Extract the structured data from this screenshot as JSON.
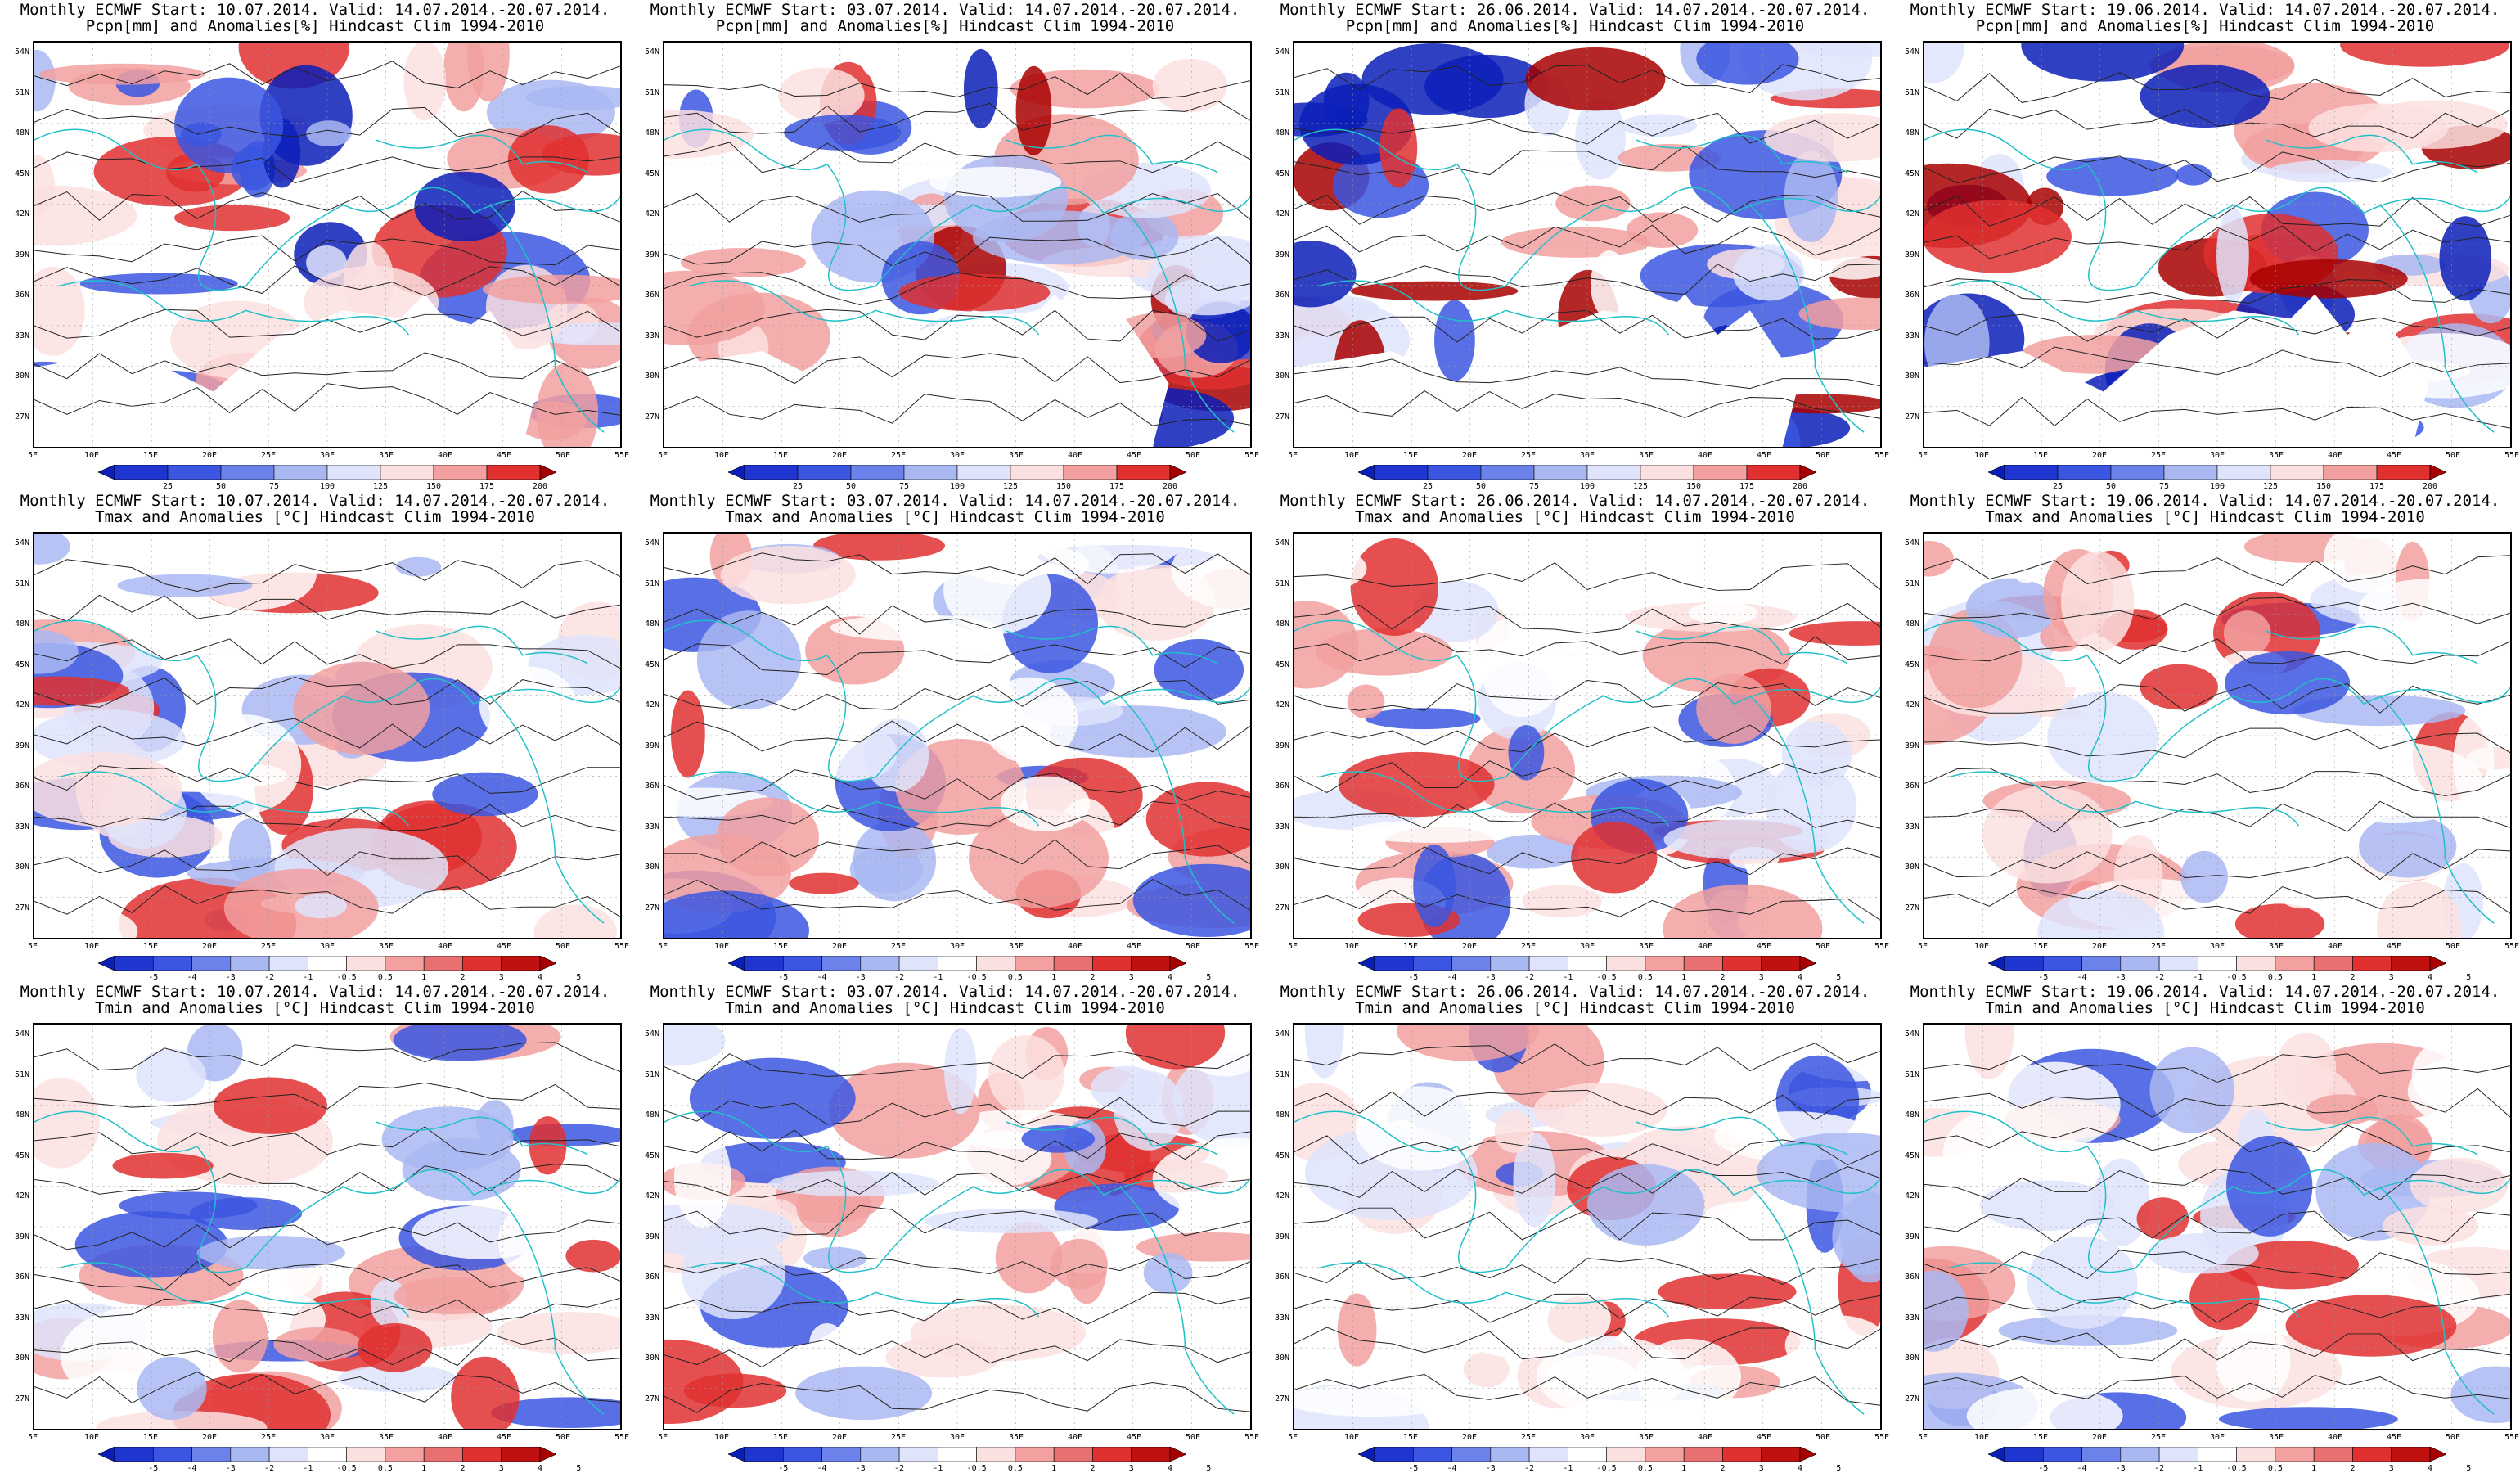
{
  "columns": [
    {
      "start": "10.07.2014"
    },
    {
      "start": "03.07.2014"
    },
    {
      "start": "26.06.2014"
    },
    {
      "start": "19.06.2014"
    }
  ],
  "title_prefix": "Monthly ECMWF Start: ",
  "title_valid": ". Valid: 14.07.2014.-20.07.2014.",
  "rows": [
    {
      "variable": "Pcpn[mm] and Anomalies[%] Hindcast Clim 1994-2010",
      "scale_labels": [
        "25",
        "50",
        "75",
        "100",
        "125",
        "150",
        "175",
        "200"
      ]
    },
    {
      "variable": "Tmax and Anomalies [°C] Hindcast Clim 1994-2010",
      "scale_labels": [
        "-5",
        "-4",
        "-3",
        "-2",
        "-1",
        "-0.5",
        "0.5",
        "1",
        "2",
        "3",
        "4",
        "5"
      ]
    },
    {
      "variable": "Tmin and Anomalies [°C] Hindcast Clim 1994-2010",
      "scale_labels": [
        "-5",
        "-4",
        "-3",
        "-2",
        "-1",
        "-0.5",
        "0.5",
        "1",
        "2",
        "3",
        "4",
        "5"
      ]
    }
  ],
  "lat_labels": [
    "54N",
    "51N",
    "48N",
    "45N",
    "42N",
    "39N",
    "36N",
    "33N",
    "30N",
    "27N"
  ],
  "lon_labels": [
    "5E",
    "10E",
    "15E",
    "20E",
    "25E",
    "30E",
    "35E",
    "40E",
    "45E",
    "50E",
    "55E"
  ],
  "colors": {
    "deep_blue": "#0a1fb8",
    "blue": "#3b56e0",
    "light_blue": "#aab8f2",
    "pale_blue": "#dfe4fb",
    "pale_red": "#fbe0e0",
    "light_red": "#f2a0a0",
    "red": "#e03030",
    "deep_red": "#a80000",
    "cyan": "#20c0c8"
  }
}
